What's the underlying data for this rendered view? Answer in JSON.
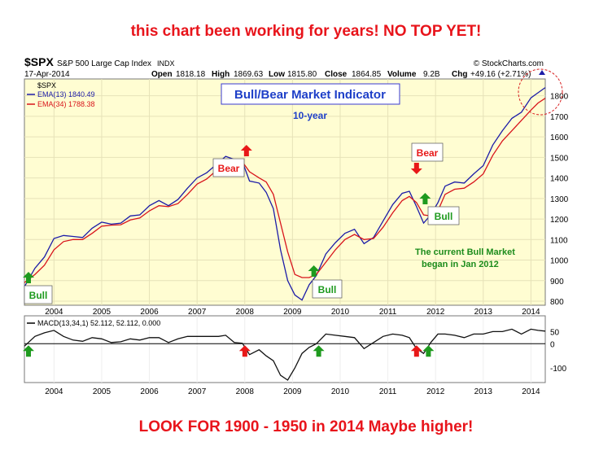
{
  "captions": {
    "top": "this chart been working for years! NO TOP YET!",
    "bottom": "LOOK FOR 1900 - 1950  in  2014 Maybe higher!"
  },
  "header": {
    "symbol": "$SPX",
    "name": "S&P 500 Large Cap Index",
    "exchange": "INDX",
    "source": "© StockCharts.com",
    "date": "17-Apr-2014",
    "open_label": "Open",
    "open": "1818.18",
    "high_label": "High",
    "high": "1869.63",
    "low_label": "Low",
    "low": "1815.80",
    "close_label": "Close",
    "close": "1864.85",
    "volume_label": "Volume",
    "volume": "9.2B",
    "chg_label": "Chg",
    "chg": "+49.16 (+2.71%)"
  },
  "colors": {
    "panel_bg": "#fffdd2",
    "ema13": "#1c1ca8",
    "ema34": "#d8141b",
    "macd": "#111111",
    "title_text": "#1e3fc8",
    "note_text": "#1c8c1c",
    "arrow_up": "#1e9a1e",
    "arrow_red": "#e81818"
  },
  "chart_data": [
    {
      "type": "line",
      "title": "Bull/Bear Market Indicator",
      "subtitle": "10-year",
      "legend_header": "$SPX",
      "yticks": [
        800,
        900,
        1000,
        1100,
        1200,
        1300,
        1400,
        1500,
        1600,
        1700,
        1800
      ],
      "ylim": [
        800,
        1870
      ],
      "x_range": [
        2003.38,
        2014.3
      ],
      "xticks": [
        2004,
        2005,
        2006,
        2007,
        2008,
        2009,
        2010,
        2011,
        2012,
        2013,
        2014
      ],
      "series": [
        {
          "name": "EMA(13) 1840.49",
          "x": [
            2003.38,
            2003.6,
            2003.8,
            2004.0,
            2004.2,
            2004.4,
            2004.6,
            2004.8,
            2005.0,
            2005.2,
            2005.4,
            2005.6,
            2005.8,
            2006.0,
            2006.2,
            2006.4,
            2006.6,
            2006.8,
            2007.0,
            2007.2,
            2007.45,
            2007.6,
            2007.78,
            2007.95,
            2008.1,
            2008.3,
            2008.45,
            2008.6,
            2008.75,
            2008.9,
            2009.05,
            2009.2,
            2009.35,
            2009.5,
            2009.7,
            2009.9,
            2010.1,
            2010.3,
            2010.5,
            2010.7,
            2010.9,
            2011.1,
            2011.3,
            2011.45,
            2011.6,
            2011.75,
            2011.9,
            2012.05,
            2012.2,
            2012.4,
            2012.6,
            2012.8,
            2013.0,
            2013.2,
            2013.4,
            2013.6,
            2013.8,
            2014.0,
            2014.15,
            2014.3
          ],
          "values": [
            870,
            960,
            1015,
            1105,
            1120,
            1115,
            1110,
            1155,
            1185,
            1175,
            1180,
            1215,
            1220,
            1265,
            1290,
            1265,
            1295,
            1350,
            1400,
            1425,
            1475,
            1505,
            1490,
            1480,
            1385,
            1375,
            1330,
            1250,
            1050,
            900,
            830,
            805,
            880,
            925,
            1030,
            1085,
            1130,
            1150,
            1080,
            1110,
            1190,
            1270,
            1325,
            1335,
            1260,
            1180,
            1220,
            1280,
            1360,
            1380,
            1375,
            1420,
            1460,
            1560,
            1630,
            1690,
            1720,
            1790,
            1815,
            1840
          ]
        },
        {
          "name": "EMA(34) 1788.38",
          "x": [
            2003.38,
            2003.6,
            2003.8,
            2004.0,
            2004.2,
            2004.4,
            2004.6,
            2004.8,
            2005.0,
            2005.2,
            2005.4,
            2005.6,
            2005.8,
            2006.0,
            2006.2,
            2006.4,
            2006.6,
            2006.8,
            2007.0,
            2007.2,
            2007.45,
            2007.6,
            2007.78,
            2007.95,
            2008.1,
            2008.3,
            2008.45,
            2008.6,
            2008.75,
            2008.9,
            2009.05,
            2009.2,
            2009.35,
            2009.5,
            2009.7,
            2009.9,
            2010.1,
            2010.3,
            2010.5,
            2010.7,
            2010.9,
            2011.1,
            2011.3,
            2011.45,
            2011.6,
            2011.75,
            2011.9,
            2012.05,
            2012.2,
            2012.4,
            2012.6,
            2012.8,
            2013.0,
            2013.2,
            2013.4,
            2013.6,
            2013.8,
            2014.0,
            2014.15,
            2014.3
          ],
          "values": [
            890,
            930,
            975,
            1050,
            1090,
            1100,
            1100,
            1130,
            1165,
            1170,
            1172,
            1195,
            1205,
            1240,
            1265,
            1260,
            1275,
            1320,
            1370,
            1395,
            1445,
            1470,
            1485,
            1478,
            1430,
            1400,
            1380,
            1320,
            1180,
            1040,
            930,
            915,
            915,
            930,
            990,
            1050,
            1100,
            1125,
            1100,
            1105,
            1160,
            1230,
            1290,
            1310,
            1280,
            1220,
            1215,
            1240,
            1320,
            1345,
            1350,
            1380,
            1420,
            1510,
            1580,
            1630,
            1680,
            1730,
            1765,
            1788
          ]
        }
      ]
    },
    {
      "type": "line",
      "label": "MACD(13,34,1) 52.112, 52.112, 0.000",
      "yticks": [
        -100,
        0,
        50
      ],
      "ylim": [
        -160,
        115
      ],
      "x_range": [
        2003.38,
        2014.3
      ],
      "xticks": [
        2004,
        2005,
        2006,
        2007,
        2008,
        2009,
        2010,
        2011,
        2012,
        2013,
        2014
      ],
      "series": [
        {
          "name": "MACD",
          "x": [
            2003.38,
            2003.6,
            2003.8,
            2004.0,
            2004.2,
            2004.4,
            2004.6,
            2004.8,
            2005.0,
            2005.2,
            2005.4,
            2005.6,
            2005.8,
            2006.0,
            2006.2,
            2006.4,
            2006.6,
            2006.8,
            2007.0,
            2007.2,
            2007.45,
            2007.6,
            2007.78,
            2007.95,
            2008.1,
            2008.3,
            2008.45,
            2008.6,
            2008.75,
            2008.9,
            2009.05,
            2009.2,
            2009.35,
            2009.5,
            2009.7,
            2009.9,
            2010.1,
            2010.3,
            2010.5,
            2010.7,
            2010.9,
            2011.1,
            2011.3,
            2011.45,
            2011.6,
            2011.75,
            2011.9,
            2012.05,
            2012.2,
            2012.4,
            2012.6,
            2012.8,
            2013.0,
            2013.2,
            2013.4,
            2013.6,
            2013.8,
            2014.0,
            2014.15,
            2014.3
          ],
          "values": [
            -10,
            30,
            45,
            55,
            30,
            15,
            10,
            25,
            20,
            5,
            8,
            20,
            15,
            25,
            25,
            5,
            20,
            30,
            30,
            30,
            30,
            35,
            5,
            2,
            -45,
            -25,
            -50,
            -70,
            -130,
            -150,
            -100,
            -40,
            -15,
            0,
            40,
            35,
            30,
            25,
            -20,
            5,
            30,
            40,
            35,
            25,
            -20,
            -40,
            5,
            40,
            40,
            35,
            25,
            40,
            40,
            50,
            50,
            60,
            40,
            60,
            55,
            52
          ]
        }
      ],
      "zero_line": 0
    }
  ],
  "annotations": {
    "bull_label": "Bull",
    "bear_label": "Bear",
    "note_line1": "The current Bull Market",
    "note_line2": "began in Jan 2012",
    "bull_x": [
      2003.38,
      2009.55,
      2011.85
    ],
    "bear_x": [
      2007.95,
      2011.55
    ]
  },
  "signals": {
    "up": [
      2003.38,
      2009.55,
      2011.85
    ],
    "down": [
      2007.95,
      2011.55
    ]
  }
}
